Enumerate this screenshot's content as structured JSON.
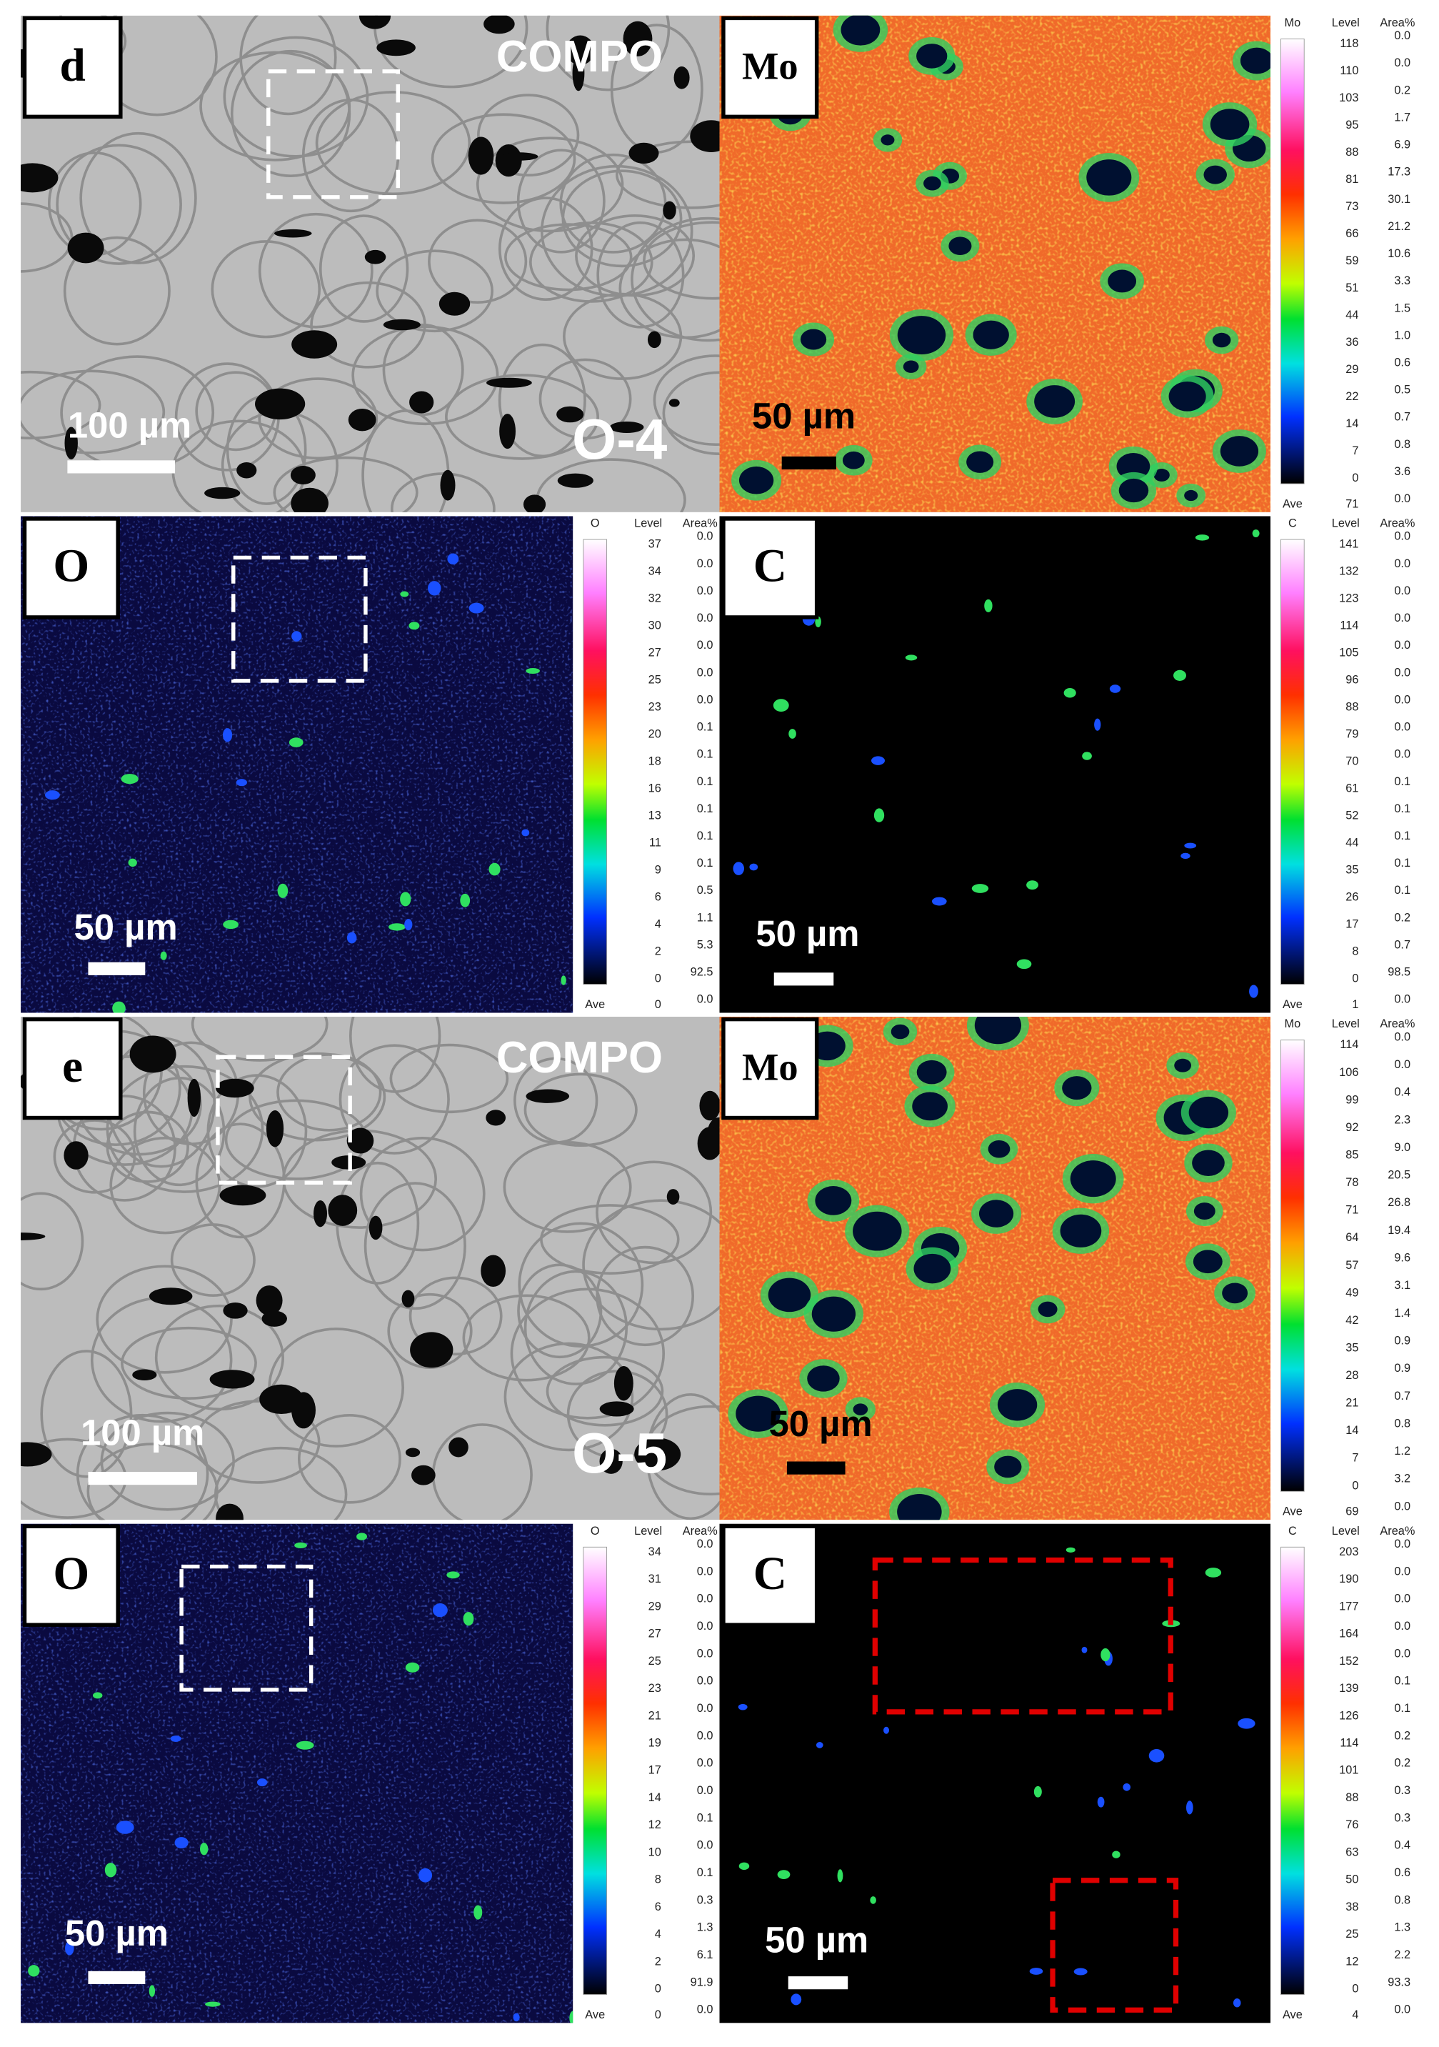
{
  "panels": [
    {
      "kind": "compo",
      "label": "d",
      "mode": "COMPO",
      "scale": "100 µm",
      "sample": "O-4"
    },
    {
      "kind": "map",
      "element": "Mo",
      "scale": "50 µm",
      "colorbar": {
        "title": "Mo",
        "level_header": "Level",
        "area_header": "Area%",
        "levels": [
          118,
          110,
          103,
          95,
          88,
          81,
          73,
          66,
          59,
          51,
          44,
          36,
          29,
          22,
          14,
          7,
          0
        ],
        "area": [
          "0.0",
          "0.0",
          "0.2",
          "1.7",
          "6.9",
          "17.3",
          "30.1",
          "21.2",
          "10.6",
          "3.3",
          "1.5",
          "1.0",
          "0.6",
          "0.5",
          "0.7",
          "0.8",
          "3.6",
          "0.0"
        ],
        "ave_label": "Ave",
        "ave": 71
      }
    },
    {
      "kind": "map",
      "element": "O",
      "scale": "50 µm",
      "colorbar": {
        "title": "O",
        "level_header": "Level",
        "area_header": "Area%",
        "levels": [
          37,
          34,
          32,
          30,
          27,
          25,
          23,
          20,
          18,
          16,
          13,
          11,
          9,
          6,
          4,
          2,
          0
        ],
        "area": [
          "0.0",
          "0.0",
          "0.0",
          "0.0",
          "0.0",
          "0.0",
          "0.0",
          "0.1",
          "0.1",
          "0.1",
          "0.1",
          "0.1",
          "0.1",
          "0.5",
          "1.1",
          "5.3",
          "92.5",
          "0.0"
        ],
        "ave_label": "Ave",
        "ave": 0
      }
    },
    {
      "kind": "map",
      "element": "C",
      "scale": "50 µm",
      "colorbar": {
        "title": "C",
        "level_header": "Level",
        "area_header": "Area%",
        "levels": [
          141,
          132,
          123,
          114,
          105,
          96,
          88,
          79,
          70,
          61,
          52,
          44,
          35,
          26,
          17,
          8,
          0
        ],
        "area": [
          "0.0",
          "0.0",
          "0.0",
          "0.0",
          "0.0",
          "0.0",
          "0.0",
          "0.0",
          "0.0",
          "0.1",
          "0.1",
          "0.1",
          "0.1",
          "0.1",
          "0.2",
          "0.7",
          "98.5",
          "0.0"
        ],
        "ave_label": "Ave",
        "ave": 1
      }
    },
    {
      "kind": "compo",
      "label": "e",
      "mode": "COMPO",
      "scale": "100 µm",
      "sample": "O-5"
    },
    {
      "kind": "map",
      "element": "Mo",
      "scale": "50 µm",
      "colorbar": {
        "title": "Mo",
        "level_header": "Level",
        "area_header": "Area%",
        "levels": [
          114,
          106,
          99,
          92,
          85,
          78,
          71,
          64,
          57,
          49,
          42,
          35,
          28,
          21,
          14,
          7,
          0
        ],
        "area": [
          "0.0",
          "0.0",
          "0.4",
          "2.3",
          "9.0",
          "20.5",
          "26.8",
          "19.4",
          "9.6",
          "3.1",
          "1.4",
          "0.9",
          "0.9",
          "0.7",
          "0.8",
          "1.2",
          "3.2",
          "0.0"
        ],
        "ave_label": "Ave",
        "ave": 69
      }
    },
    {
      "kind": "map",
      "element": "O",
      "scale": "50 µm",
      "colorbar": {
        "title": "O",
        "level_header": "Level",
        "area_header": "Area%",
        "levels": [
          34,
          31,
          29,
          27,
          25,
          23,
          21,
          19,
          17,
          14,
          12,
          10,
          8,
          6,
          4,
          2,
          0
        ],
        "area": [
          "0.0",
          "0.0",
          "0.0",
          "0.0",
          "0.0",
          "0.0",
          "0.0",
          "0.0",
          "0.0",
          "0.0",
          "0.1",
          "0.0",
          "0.1",
          "0.3",
          "1.3",
          "6.1",
          "91.9",
          "0.0"
        ],
        "ave_label": "Ave",
        "ave": 0
      }
    },
    {
      "kind": "map",
      "element": "C",
      "scale": "50 µm",
      "colorbar": {
        "title": "C",
        "level_header": "Level",
        "area_header": "Area%",
        "levels": [
          203,
          190,
          177,
          164,
          152,
          139,
          126,
          114,
          101,
          88,
          76,
          63,
          50,
          38,
          25,
          12,
          0
        ],
        "area": [
          "0.0",
          "0.0",
          "0.0",
          "0.0",
          "0.0",
          "0.1",
          "0.1",
          "0.2",
          "0.2",
          "0.3",
          "0.3",
          "0.4",
          "0.6",
          "0.8",
          "1.3",
          "2.2",
          "93.3",
          "0.0"
        ],
        "ave_label": "Ave",
        "ave": 4
      }
    }
  ]
}
